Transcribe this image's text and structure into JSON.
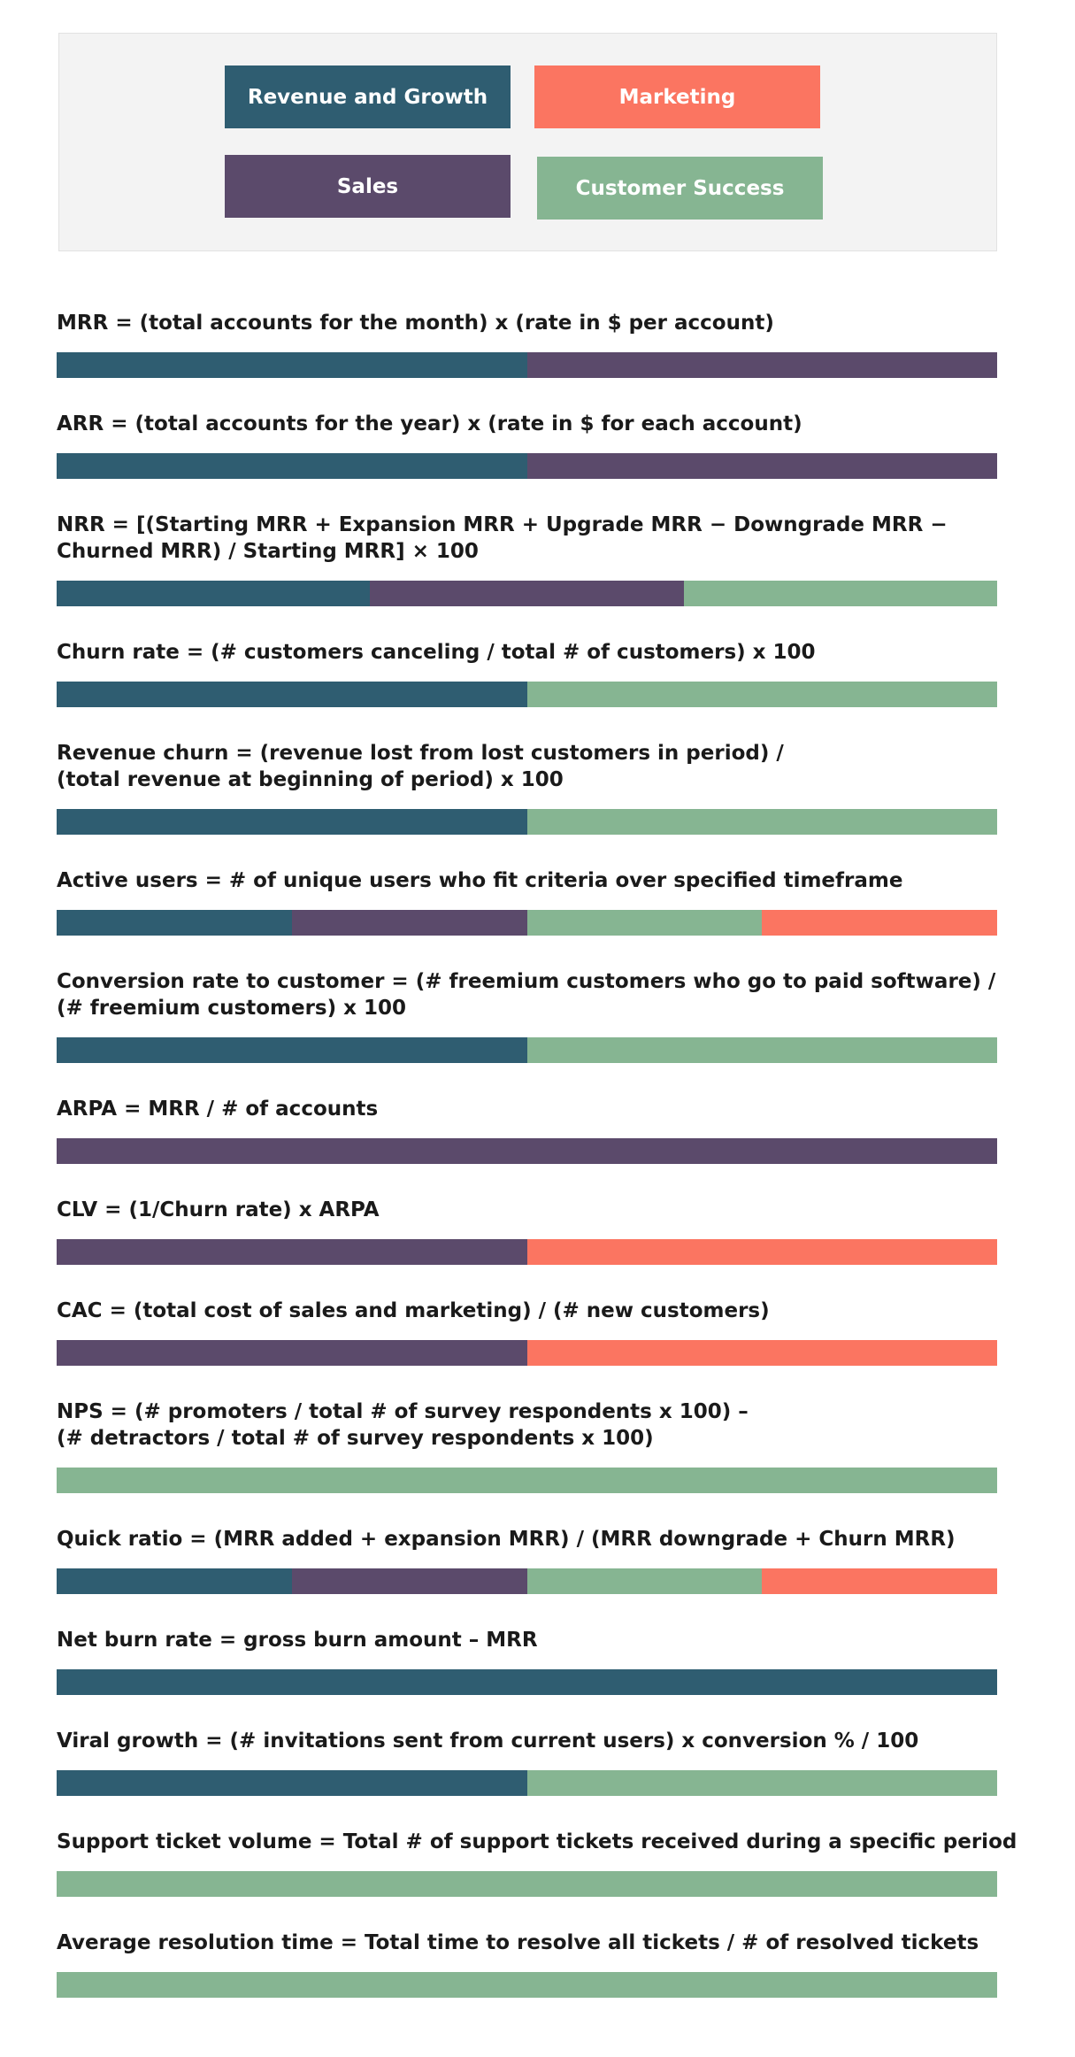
{
  "legend": [
    {
      "label": "Revenue and Growth",
      "color": "#2f5d71"
    },
    {
      "label": "Marketing",
      "color": "#fb7561"
    },
    {
      "label": "Sales",
      "color": "#5b4a6b"
    },
    {
      "label": "Customer Success",
      "color": "#86b592"
    }
  ],
  "formulas": [
    {
      "lines": [
        "MRR = (total accounts for the month) x (rate in $ per account)"
      ],
      "segments": [
        "#2f5d71",
        "#5b4a6b"
      ]
    },
    {
      "lines": [
        "ARR = (total accounts for the year) x (rate in $ for each account)"
      ],
      "segments": [
        "#2f5d71",
        "#5b4a6b"
      ]
    },
    {
      "lines": [
        "NRR = [(Starting MRR + Expansion MRR + Upgrade MRR − Downgrade MRR −",
        "Churned MRR) / Starting MRR] × 100"
      ],
      "segments": [
        "#2f5d71",
        "#5b4a6b",
        "#86b592"
      ]
    },
    {
      "lines": [
        "Churn rate = (# customers canceling / total # of customers) x 100"
      ],
      "segments": [
        "#2f5d71",
        "#86b592"
      ]
    },
    {
      "lines": [
        "Revenue churn = (revenue lost from lost customers in period) /",
        "(total revenue at beginning of period) x 100"
      ],
      "segments": [
        "#2f5d71",
        "#86b592"
      ]
    },
    {
      "lines": [
        "Active users = # of unique users who fit criteria over specified timeframe"
      ],
      "segments": [
        "#2f5d71",
        "#5b4a6b",
        "#86b592",
        "#fb7561"
      ]
    },
    {
      "lines": [
        "Conversion rate to customer = (# freemium customers who go to paid software) /",
        "(# freemium customers) x 100"
      ],
      "segments": [
        "#2f5d71",
        "#86b592"
      ]
    },
    {
      "lines": [
        "ARPA = MRR / # of accounts"
      ],
      "segments": [
        "#5b4a6b"
      ]
    },
    {
      "lines": [
        "CLV =  (1/Churn rate) x ARPA"
      ],
      "segments": [
        "#5b4a6b",
        "#fb7561"
      ]
    },
    {
      "lines": [
        "CAC = (total cost of sales and marketing) / (# new customers)"
      ],
      "segments": [
        "#5b4a6b",
        "#fb7561"
      ]
    },
    {
      "lines": [
        "NPS = (# promoters / total # of survey respondents x 100) –",
        "(# detractors / total # of survey respondents x 100)"
      ],
      "segments": [
        "#86b592"
      ]
    },
    {
      "lines": [
        "Quick ratio = (MRR added + expansion MRR) / (MRR downgrade + Churn MRR)"
      ],
      "segments": [
        "#2f5d71",
        "#5b4a6b",
        "#86b592",
        "#fb7561"
      ]
    },
    {
      "lines": [
        "Net burn rate = gross burn amount – MRR"
      ],
      "segments": [
        "#2f5d71"
      ]
    },
    {
      "lines": [
        "Viral growth = (# invitations sent from current users) x conversion % / 100"
      ],
      "segments": [
        "#2f5d71",
        "#86b592"
      ]
    },
    {
      "lines": [
        "Support ticket volume = Total # of support tickets received during a specific period"
      ],
      "segments": [
        "#86b592"
      ]
    },
    {
      "lines": [
        "Average resolution time = Total time to resolve all tickets / # of resolved tickets"
      ],
      "segments": [
        "#86b592"
      ]
    }
  ]
}
